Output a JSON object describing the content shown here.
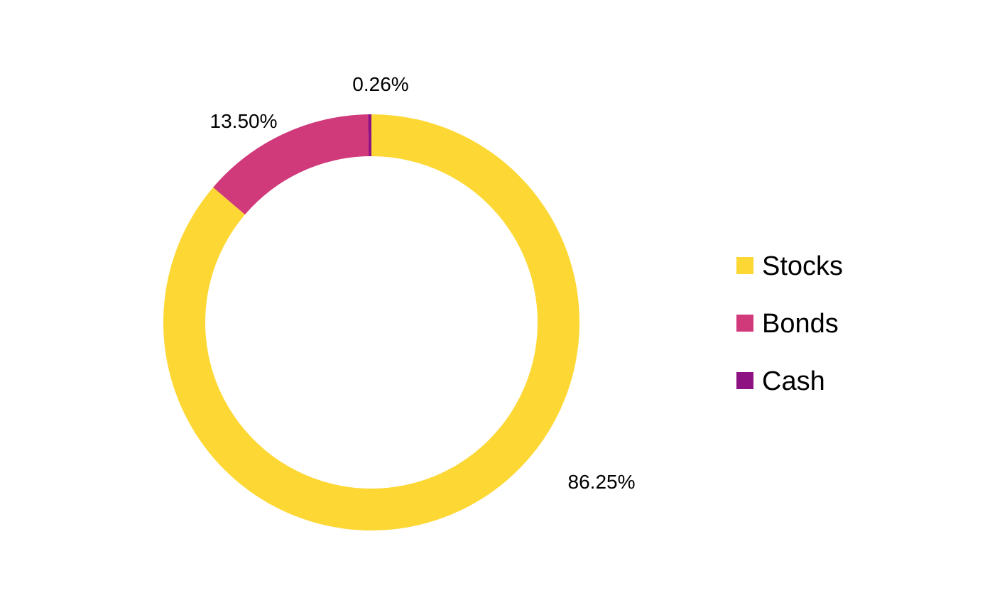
{
  "chart_data": {
    "type": "pie",
    "variant": "donut",
    "title": "",
    "categories": [
      "Stocks",
      "Bonds",
      "Cash"
    ],
    "values": [
      86.25,
      13.5,
      0.26
    ],
    "value_labels": [
      "86.25%",
      "13.50%",
      "0.26%"
    ],
    "colors": [
      "#FDD835",
      "#D13A7A",
      "#8E1282"
    ],
    "legend": {
      "position": "right",
      "entries": [
        "Stocks",
        "Bonds",
        "Cash"
      ]
    }
  }
}
